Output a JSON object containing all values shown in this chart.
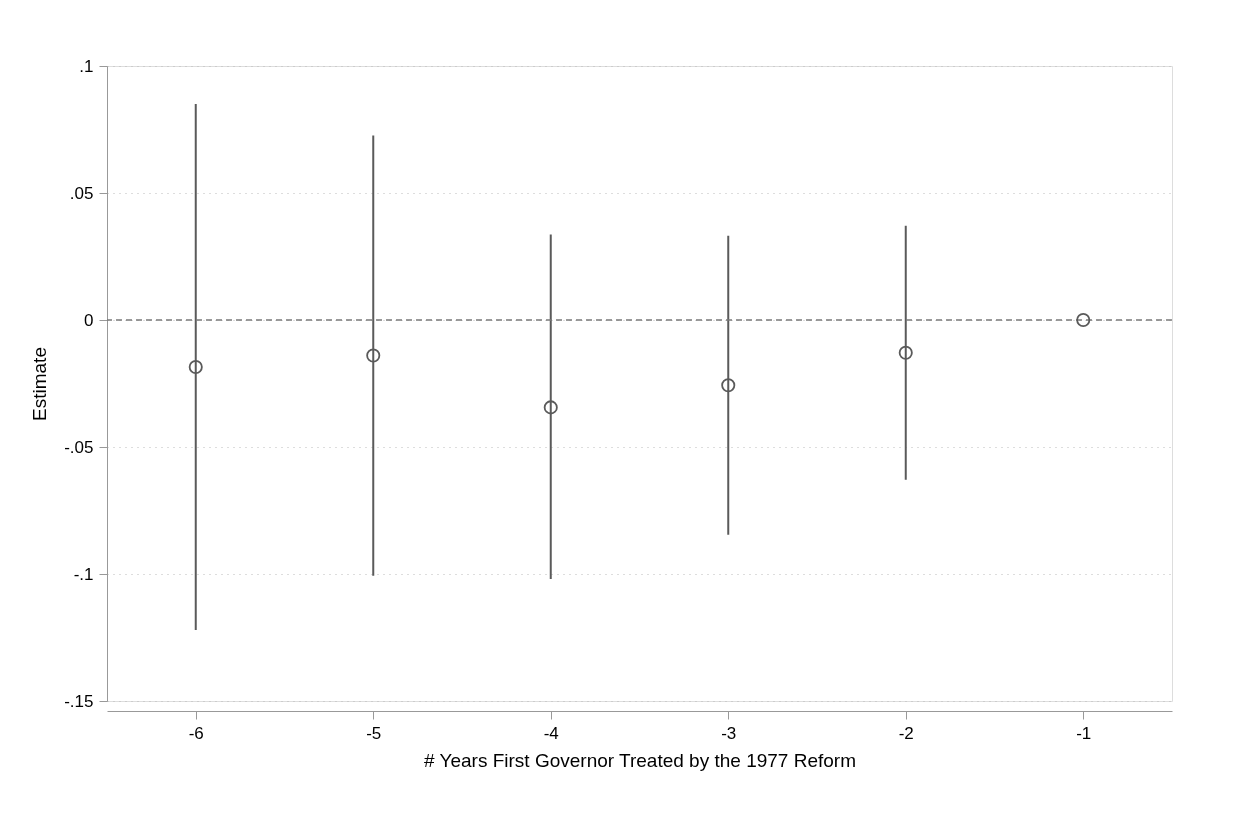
{
  "chart_data": {
    "type": "scatter",
    "xlabel": "# Years First Governor Treated by the 1977 Reform",
    "ylabel": "Estimate",
    "x": [
      -6,
      -5,
      -4,
      -3,
      -2,
      -1
    ],
    "series": [
      {
        "color": "#5a5a5a",
        "values": [
          -0.0185,
          -0.014,
          -0.0344,
          -0.0257,
          -0.0129,
          0
        ],
        "errors": [
          [
            -0.122,
            0.085
          ],
          [
            -0.1007,
            0.0726
          ],
          [
            -0.102,
            0.0337
          ],
          [
            -0.0845,
            0.0332
          ],
          [
            -0.0629,
            0.0371
          ],
          null
        ]
      }
    ],
    "xlim": [
      -6.5,
      -0.5
    ],
    "xticks": [
      -6,
      -5,
      -4,
      -3,
      -2,
      -1
    ],
    "ylim": [
      -0.15,
      0.1
    ],
    "yticks": [
      {
        "value": -0.15,
        "label": "-.15"
      },
      {
        "value": -0.1,
        "label": "-.1"
      },
      {
        "value": -0.05,
        "label": "-.05"
      },
      0,
      {
        "value": 0.05,
        "label": ".05"
      },
      {
        "value": 0.1,
        "label": ".1"
      }
    ],
    "grid": "y",
    "marker": "circle",
    "ref_lines": [
      {
        "axis": "y",
        "value": 0,
        "color": "#7a7a7a",
        "line_style": "dashed"
      }
    ]
  }
}
